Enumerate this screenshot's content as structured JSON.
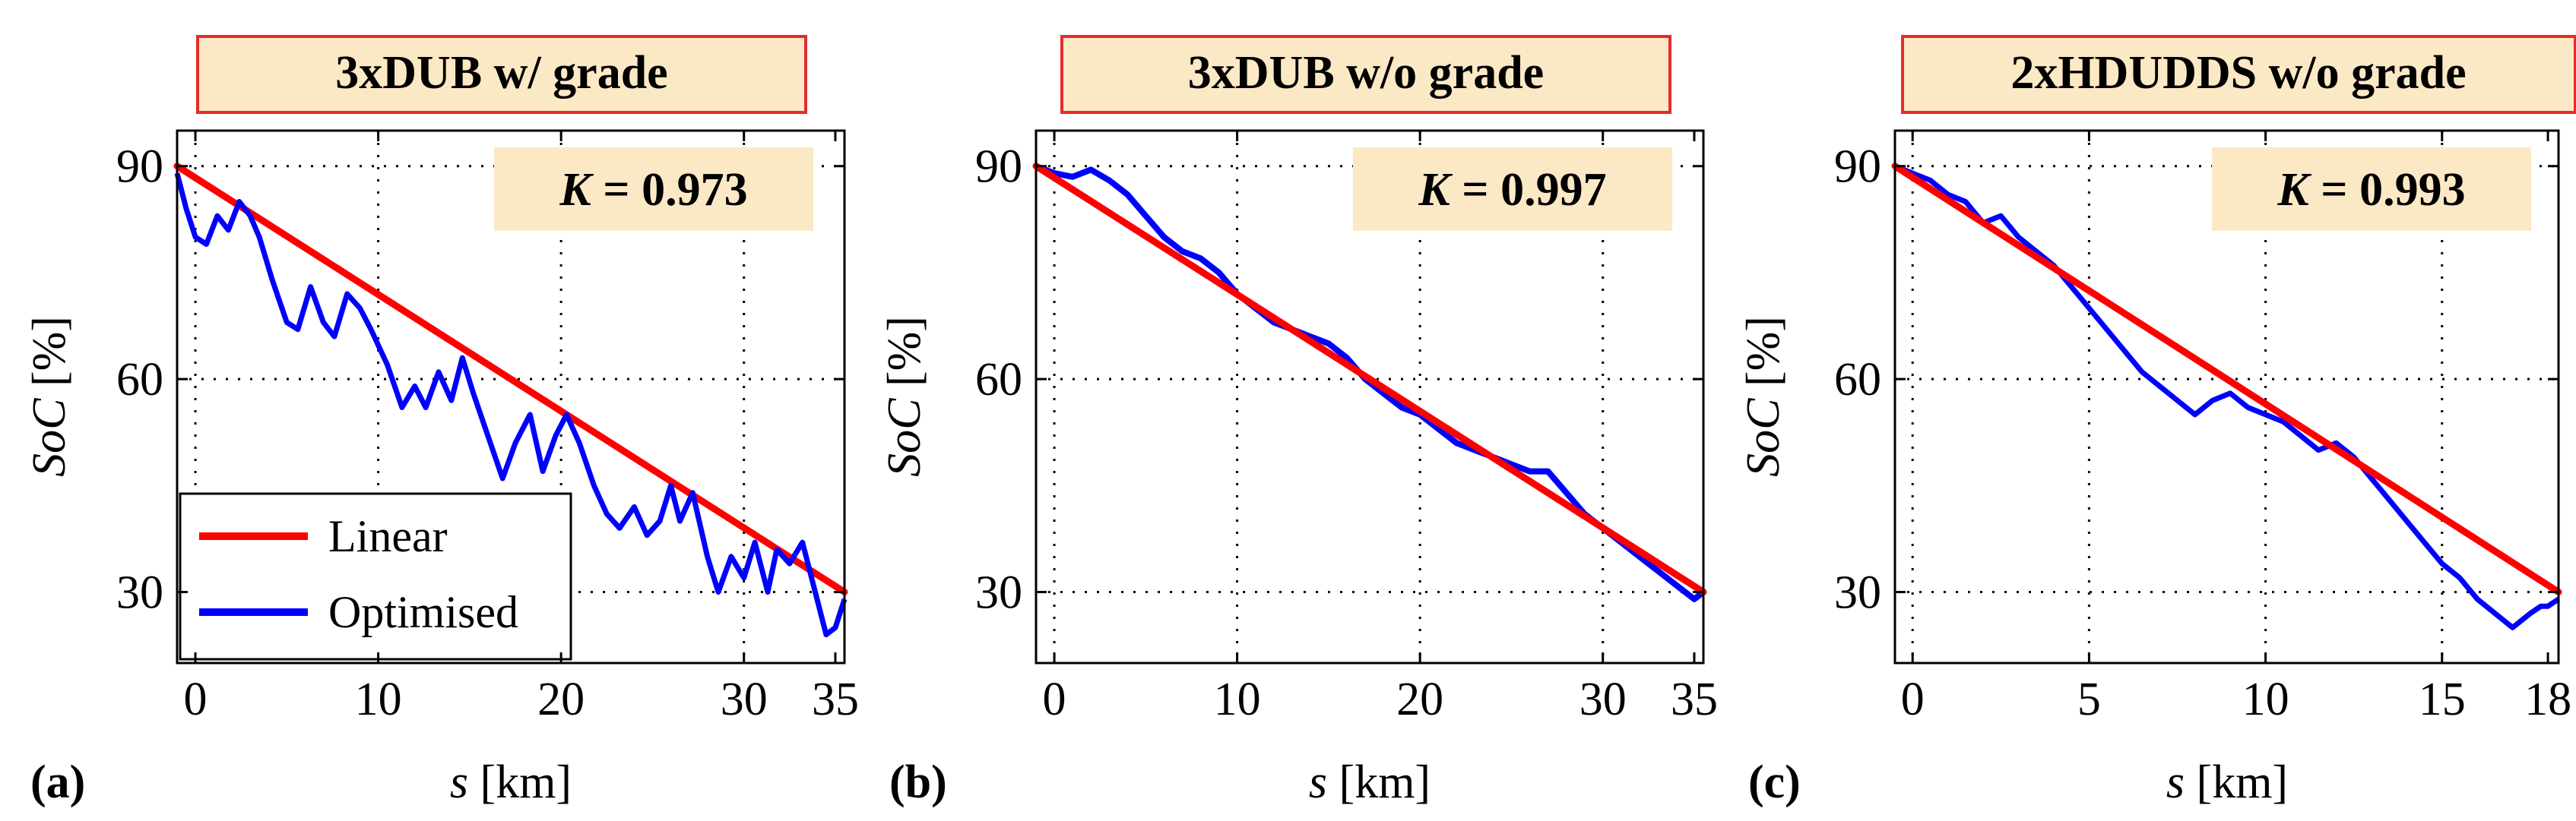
{
  "figure": {
    "panels": [
      {
        "label": "(a)",
        "title": "3xDUB w/ grade",
        "k_symbol": "K",
        "k_text": " = 0.973"
      },
      {
        "label": "(b)",
        "title": "3xDUB w/o grade",
        "k_symbol": "K",
        "k_text": " = 0.997"
      },
      {
        "label": "(c)",
        "title": "2xHDUDDS w/o grade",
        "k_symbol": "K",
        "k_text": " = 0.993"
      }
    ],
    "legend": {
      "linear": "Linear",
      "optimised": "Optimised"
    },
    "ylabel_var": "SoC",
    "ylabel_unit": " [%]",
    "xlabel_var": "s",
    "xlabel_unit": " [km]"
  },
  "colors": {
    "linear": "#ff0000",
    "optimised": "#0000ff",
    "title_box_fill": "#fbe9c6",
    "title_box_border": "#e52b2b",
    "k_box_fill": "#fbe9c6"
  },
  "chart_data": [
    {
      "type": "line",
      "title": "3xDUB w/ grade",
      "xlabel": "s [km]",
      "ylabel": "SoC [%]",
      "xlim": [
        -1,
        35.5
      ],
      "ylim": [
        20,
        95
      ],
      "xticks": [
        0,
        10,
        20,
        30,
        35
      ],
      "yticks": [
        30,
        60,
        90
      ],
      "grid": true,
      "legend_position": "bottom-left",
      "annotation": "K = 0.973",
      "series": [
        {
          "name": "Linear",
          "x": [
            -1,
            35.5
          ],
          "y": [
            90,
            30
          ]
        },
        {
          "name": "Optimised",
          "x": [
            -1,
            -0.5,
            0,
            0.6,
            1.2,
            1.8,
            2.4,
            3.0,
            3.5,
            4.2,
            5.0,
            5.6,
            6.3,
            7.0,
            7.6,
            8.3,
            9.0,
            9.6,
            10.5,
            11.3,
            12.0,
            12.6,
            13.3,
            14.0,
            14.6,
            15.2,
            16.0,
            16.8,
            17.5,
            18.3,
            19.0,
            19.7,
            20.3,
            21.0,
            21.8,
            22.5,
            23.2,
            24.0,
            24.7,
            25.4,
            26.0,
            26.5,
            27.2,
            28.0,
            28.6,
            29.3,
            30.0,
            30.6,
            31.3,
            31.8,
            32.5,
            33.2,
            33.9,
            34.5,
            35.0,
            35.5
          ],
          "y": [
            89,
            84,
            80,
            79,
            83,
            81,
            85,
            83,
            80,
            74,
            68,
            67,
            73,
            68,
            66,
            72,
            70,
            67,
            62,
            56,
            59,
            56,
            61,
            57,
            63,
            58,
            52,
            46,
            51,
            55,
            47,
            52,
            55,
            51,
            45,
            41,
            39,
            42,
            38,
            40,
            45,
            40,
            44,
            35,
            30,
            35,
            32,
            37,
            30,
            36,
            34,
            37,
            30,
            24,
            25,
            29
          ]
        }
      ]
    },
    {
      "type": "line",
      "title": "3xDUB w/o grade",
      "xlabel": "s [km]",
      "ylabel": "SoC [%]",
      "xlim": [
        -1,
        35.5
      ],
      "ylim": [
        20,
        95
      ],
      "xticks": [
        0,
        10,
        20,
        30,
        35
      ],
      "yticks": [
        30,
        60,
        90
      ],
      "grid": true,
      "annotation": "K = 0.997",
      "series": [
        {
          "name": "Linear",
          "x": [
            -1,
            35.5
          ],
          "y": [
            90,
            30
          ]
        },
        {
          "name": "Optimised",
          "x": [
            -1,
            0,
            1,
            2,
            3,
            4,
            5,
            6,
            7,
            8,
            9,
            10,
            11,
            12,
            13,
            14,
            15,
            16,
            17,
            18,
            19,
            20,
            21,
            22,
            23,
            24,
            25,
            26,
            27,
            28,
            29,
            30,
            31,
            32,
            33,
            34,
            35,
            35.5
          ],
          "y": [
            90,
            89,
            88.5,
            89.5,
            88,
            86,
            83,
            80,
            78,
            77,
            75,
            72,
            70,
            68,
            67,
            66,
            65,
            63,
            60,
            58,
            56,
            55,
            53,
            51,
            50,
            49,
            48,
            47,
            47,
            44,
            41,
            39,
            37,
            35,
            33,
            31,
            29,
            30
          ]
        }
      ]
    },
    {
      "type": "line",
      "title": "2xHDUDDS w/o grade",
      "xlabel": "s [km]",
      "ylabel": "SoC [%]",
      "xlim": [
        -0.5,
        18.3
      ],
      "ylim": [
        20,
        95
      ],
      "xticks": [
        0,
        5,
        10,
        15,
        18
      ],
      "yticks": [
        30,
        60,
        90
      ],
      "grid": true,
      "annotation": "K = 0.993",
      "series": [
        {
          "name": "Linear",
          "x": [
            -0.5,
            18.3
          ],
          "y": [
            90,
            30
          ]
        },
        {
          "name": "Optimised",
          "x": [
            -0.5,
            0,
            0.5,
            1,
            1.5,
            2,
            2.5,
            3,
            3.5,
            4,
            4.5,
            5,
            5.5,
            6,
            6.5,
            7,
            7.5,
            8,
            8.5,
            9,
            9.5,
            10,
            10.5,
            11,
            11.5,
            12,
            12.5,
            13,
            13.5,
            14,
            14.5,
            15,
            15.5,
            16,
            16.5,
            17,
            17.5,
            17.8,
            18,
            18.3
          ],
          "y": [
            90,
            89,
            88,
            86,
            85,
            82,
            83,
            80,
            78,
            76,
            73,
            70,
            67,
            64,
            61,
            59,
            57,
            55,
            57,
            58,
            56,
            55,
            54,
            52,
            50,
            51,
            49,
            46,
            43,
            40,
            37,
            34,
            32,
            29,
            27,
            25,
            27,
            28,
            28,
            29
          ]
        }
      ]
    }
  ]
}
